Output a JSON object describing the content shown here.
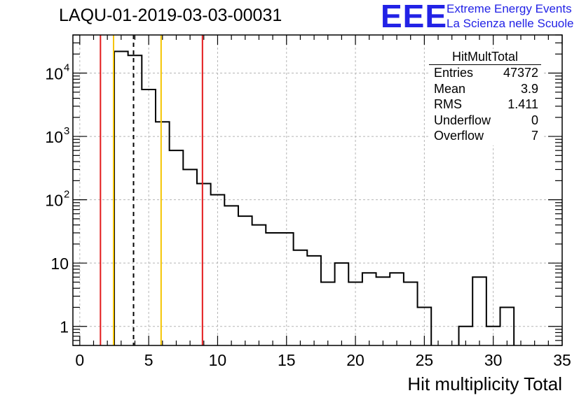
{
  "title": "LAQU-01-2019-03-03-00031",
  "logo": {
    "text": "EEE",
    "line1": "Extreme Energy Events",
    "line2": "La Scienza nelle Scuole",
    "color": "#2222e6"
  },
  "stats_box": {
    "name": "HitMultTotal",
    "rows": [
      {
        "label": "Entries",
        "value": "47372"
      },
      {
        "label": "Mean",
        "value": "3.9"
      },
      {
        "label": "RMS",
        "value": "1.411"
      },
      {
        "label": "Underflow",
        "value": "0"
      },
      {
        "label": "Overflow",
        "value": "7"
      }
    ]
  },
  "chart_data": {
    "type": "histogram",
    "xlabel": "Hit multiplicity Total",
    "xlim": [
      -0.5,
      35
    ],
    "ylim": [
      0.5,
      40000
    ],
    "yscale": "log",
    "grid": true,
    "x_ticks": [
      0,
      5,
      10,
      15,
      20,
      25,
      30,
      35
    ],
    "y_ticks": [
      {
        "value": 1,
        "label": "1"
      },
      {
        "value": 10,
        "label": "10"
      },
      {
        "value": 100,
        "label": "10",
        "exp": "2"
      },
      {
        "value": 1000,
        "label": "10",
        "exp": "3"
      },
      {
        "value": 10000,
        "label": "10",
        "exp": "4"
      }
    ],
    "bin_edges_start": 2.5,
    "bin_width": 1,
    "counts": [
      22000,
      19000,
      5500,
      1700,
      600,
      300,
      180,
      120,
      80,
      55,
      40,
      30,
      30,
      16,
      13,
      5,
      10,
      5,
      7,
      6,
      7,
      5,
      2,
      0.0,
      0.0,
      1,
      6,
      1,
      2
    ],
    "vertical_lines": [
      {
        "x": 1.5,
        "color": "#e31a1c",
        "style": "solid"
      },
      {
        "x": 2.45,
        "color": "#f5c400",
        "style": "solid"
      },
      {
        "x": 3.9,
        "color": "#000000",
        "style": "dashed"
      },
      {
        "x": 5.9,
        "color": "#f5c400",
        "style": "solid"
      },
      {
        "x": 8.9,
        "color": "#e31a1c",
        "style": "solid"
      }
    ]
  }
}
